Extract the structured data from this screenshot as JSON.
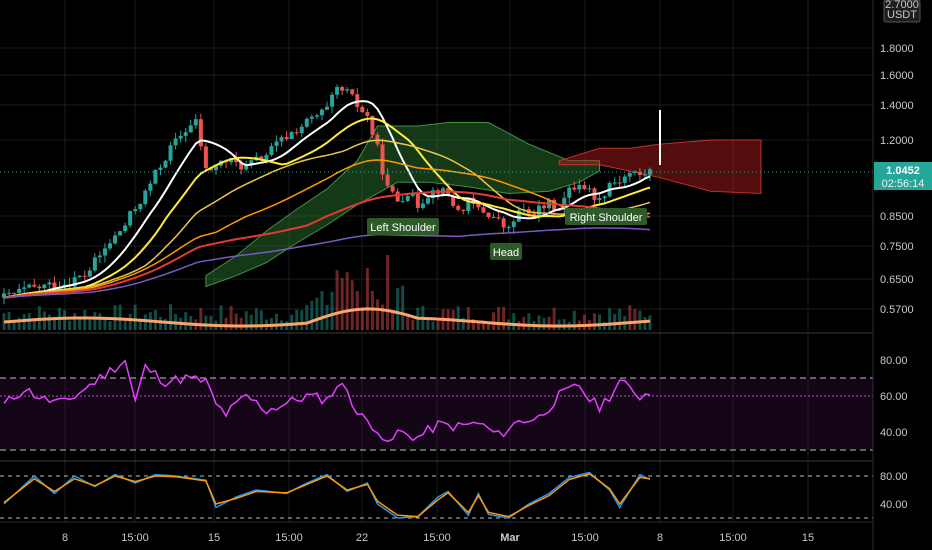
{
  "price_axis": {
    "ticks": [
      "1.8000",
      "1.6000",
      "1.4000",
      "1.2000",
      "0.8500",
      "0.7500",
      "0.6500",
      "0.5700"
    ],
    "top_label_line1": "2.7000",
    "top_label_line2": "USDT",
    "current_price": "1.0452",
    "countdown": "02:56:14",
    "current_color": "#26a69a"
  },
  "rsi_axis": {
    "ticks": [
      "80.00",
      "60.00",
      "40.00"
    ]
  },
  "stoch_axis": {
    "ticks": [
      "80.00",
      "40.00"
    ]
  },
  "time_axis": {
    "labels": [
      "8",
      "15:00",
      "15",
      "15:00",
      "22",
      "15:00",
      "Mar",
      "15:00",
      "8",
      "15:00",
      "15"
    ]
  },
  "annotations": [
    {
      "label": "Left Shoulder",
      "bg": "#2e5a2a"
    },
    {
      "label": "Head",
      "bg": "#2e5a2a"
    },
    {
      "label": "Right Shoulder",
      "bg": "#2e5a2a"
    }
  ],
  "colors": {
    "up": "#26a69a",
    "down": "#ef5350",
    "cloud_bull": "#2e7d32",
    "cloud_bear": "#b71c1c",
    "ma_white": "#ffffff",
    "ma_yellow": "#ffeb3b",
    "ma_gold": "#e6c84a",
    "ma_orange": "#ff9800",
    "ma_red": "#e53935",
    "ma_purple": "#7e57c2",
    "vol_ma": "#ffa36c",
    "rsi": "#e040fb",
    "stoch_k": "#2196f3",
    "stoch_d": "#ff9800"
  },
  "chart_data": {
    "type": "candlestick",
    "price_levels": [
      1.8,
      1.6,
      1.4,
      1.2,
      0.85,
      0.75,
      0.65,
      0.57
    ],
    "last_price": 1.0452,
    "price_path": [
      [
        0,
        0.6
      ],
      [
        4,
        0.62
      ],
      [
        8,
        0.63
      ],
      [
        12,
        0.64
      ],
      [
        16,
        0.66
      ],
      [
        20,
        0.74
      ],
      [
        24,
        0.82
      ],
      [
        28,
        0.95
      ],
      [
        32,
        1.12
      ],
      [
        36,
        1.26
      ],
      [
        38,
        1.3
      ],
      [
        40,
        1.05
      ],
      [
        44,
        1.1
      ],
      [
        48,
        1.07
      ],
      [
        52,
        1.13
      ],
      [
        56,
        1.22
      ],
      [
        60,
        1.3
      ],
      [
        64,
        1.37
      ],
      [
        66,
        1.5
      ],
      [
        68,
        1.48
      ],
      [
        70,
        1.4
      ],
      [
        72,
        1.33
      ],
      [
        74,
        1.15
      ],
      [
        76,
        0.97
      ],
      [
        78,
        0.92
      ],
      [
        80,
        0.96
      ],
      [
        82,
        0.9
      ],
      [
        84,
        0.95
      ],
      [
        86,
        0.97
      ],
      [
        88,
        0.94
      ],
      [
        90,
        0.87
      ],
      [
        92,
        0.91
      ],
      [
        94,
        0.88
      ],
      [
        96,
        0.86
      ],
      [
        98,
        0.83
      ],
      [
        100,
        0.8
      ],
      [
        102,
        0.87
      ],
      [
        104,
        0.86
      ],
      [
        106,
        0.88
      ],
      [
        108,
        0.9
      ],
      [
        110,
        0.89
      ],
      [
        112,
        0.96
      ],
      [
        114,
        1.0
      ],
      [
        116,
        0.96
      ],
      [
        118,
        0.92
      ],
      [
        120,
        1.0
      ],
      [
        122,
        1.01
      ],
      [
        124,
        1.04
      ],
      [
        126,
        1.03
      ],
      [
        128,
        1.05
      ]
    ],
    "rsi_levels": [
      80,
      60,
      40
    ],
    "rsi_bands": [
      70,
      30
    ],
    "rsi_path": [
      [
        0,
        55
      ],
      [
        4,
        64
      ],
      [
        8,
        58
      ],
      [
        12,
        56
      ],
      [
        16,
        64
      ],
      [
        20,
        72
      ],
      [
        24,
        80
      ],
      [
        26,
        57
      ],
      [
        28,
        76
      ],
      [
        32,
        68
      ],
      [
        36,
        70
      ],
      [
        40,
        68
      ],
      [
        42,
        55
      ],
      [
        44,
        50
      ],
      [
        48,
        60
      ],
      [
        52,
        52
      ],
      [
        56,
        56
      ],
      [
        60,
        60
      ],
      [
        64,
        58
      ],
      [
        66,
        66
      ],
      [
        68,
        64
      ],
      [
        70,
        50
      ],
      [
        74,
        42
      ],
      [
        76,
        32
      ],
      [
        78,
        40
      ],
      [
        82,
        37
      ],
      [
        86,
        44
      ],
      [
        90,
        43
      ],
      [
        94,
        45
      ],
      [
        98,
        38
      ],
      [
        102,
        46
      ],
      [
        106,
        48
      ],
      [
        110,
        60
      ],
      [
        114,
        66
      ],
      [
        116,
        58
      ],
      [
        118,
        54
      ],
      [
        120,
        60
      ],
      [
        122,
        68
      ],
      [
        126,
        60
      ],
      [
        128,
        62
      ]
    ],
    "stoch_levels": [
      80,
      40
    ],
    "stoch_bands": [
      80,
      20
    ],
    "stoch_k_path": [
      [
        0,
        40
      ],
      [
        6,
        80
      ],
      [
        10,
        55
      ],
      [
        14,
        80
      ],
      [
        18,
        65
      ],
      [
        22,
        82
      ],
      [
        26,
        70
      ],
      [
        30,
        82
      ],
      [
        34,
        80
      ],
      [
        40,
        74
      ],
      [
        42,
        35
      ],
      [
        46,
        50
      ],
      [
        50,
        60
      ],
      [
        56,
        55
      ],
      [
        60,
        70
      ],
      [
        64,
        82
      ],
      [
        68,
        58
      ],
      [
        72,
        70
      ],
      [
        74,
        40
      ],
      [
        78,
        20
      ],
      [
        82,
        22
      ],
      [
        86,
        50
      ],
      [
        88,
        58
      ],
      [
        92,
        24
      ],
      [
        94,
        55
      ],
      [
        96,
        25
      ],
      [
        100,
        20
      ],
      [
        104,
        40
      ],
      [
        108,
        55
      ],
      [
        112,
        78
      ],
      [
        116,
        85
      ],
      [
        120,
        60
      ],
      [
        122,
        35
      ],
      [
        126,
        82
      ],
      [
        128,
        75
      ]
    ],
    "stoch_d_path": [
      [
        0,
        42
      ],
      [
        6,
        76
      ],
      [
        10,
        58
      ],
      [
        14,
        76
      ],
      [
        18,
        66
      ],
      [
        22,
        80
      ],
      [
        26,
        72
      ],
      [
        30,
        80
      ],
      [
        34,
        79
      ],
      [
        40,
        73
      ],
      [
        42,
        40
      ],
      [
        46,
        48
      ],
      [
        50,
        58
      ],
      [
        56,
        56
      ],
      [
        60,
        68
      ],
      [
        64,
        80
      ],
      [
        68,
        60
      ],
      [
        72,
        68
      ],
      [
        74,
        44
      ],
      [
        78,
        24
      ],
      [
        82,
        22
      ],
      [
        86,
        46
      ],
      [
        88,
        56
      ],
      [
        92,
        28
      ],
      [
        94,
        52
      ],
      [
        96,
        28
      ],
      [
        100,
        22
      ],
      [
        104,
        38
      ],
      [
        108,
        52
      ],
      [
        112,
        75
      ],
      [
        116,
        83
      ],
      [
        120,
        62
      ],
      [
        122,
        40
      ],
      [
        126,
        78
      ],
      [
        128,
        76
      ]
    ]
  }
}
